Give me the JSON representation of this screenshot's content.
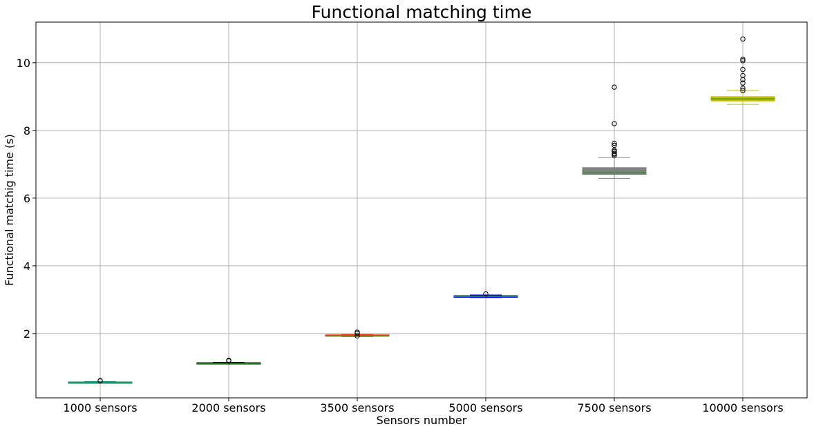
{
  "chart_data": {
    "type": "box",
    "title": "Functional matching time",
    "xlabel": "Sensors number",
    "ylabel": "Functional matchig time (s)",
    "ylim": [
      0.1,
      11.2
    ],
    "yticks": [
      2,
      4,
      6,
      8,
      10
    ],
    "grid": true,
    "categories": [
      "1000 sensors",
      "2000 sensors",
      "3500 sensors",
      "5000 sensors",
      "7500 sensors",
      "10000 sensors"
    ],
    "series": [
      {
        "box_color": "#008080",
        "median_color": "#2ca02c",
        "whisker_low": 0.54,
        "q1": 0.55,
        "median": 0.56,
        "q3": 0.57,
        "whisker_high": 0.58,
        "outliers": [
          0.6,
          0.61
        ]
      },
      {
        "box_color": "#000000",
        "median_color": "#2ca02c",
        "whisker_low": 1.1,
        "q1": 1.11,
        "median": 1.12,
        "q3": 1.14,
        "whisker_high": 1.15,
        "outliers": [
          1.19,
          1.21
        ]
      },
      {
        "box_color": "#e8300c",
        "median_color": "#2ca02c",
        "whisker_low": 1.91,
        "q1": 1.92,
        "median": 1.94,
        "q3": 1.96,
        "whisker_high": 1.97,
        "outliers": [
          1.93,
          2.01,
          2.04
        ]
      },
      {
        "box_color": "#0000ff",
        "median_color": "#2ca02c",
        "whisker_low": 3.06,
        "q1": 3.07,
        "median": 3.1,
        "q3": 3.12,
        "whisker_high": 3.14,
        "outliers": [
          3.17
        ]
      },
      {
        "box_color": "#808080",
        "median_color": "#2ca02c",
        "whisker_low": 6.58,
        "q1": 6.7,
        "median": 6.76,
        "q3": 6.9,
        "whisker_high": 7.2,
        "outliers": [
          7.26,
          7.3,
          7.33,
          7.38,
          7.42,
          7.56,
          7.62,
          8.2,
          9.28
        ]
      },
      {
        "box_color": "#bfbf00",
        "median_color": "#2ca02c",
        "whisker_low": 8.77,
        "q1": 8.87,
        "median": 8.93,
        "q3": 9.0,
        "whisker_high": 9.18,
        "outliers": [
          9.18,
          9.25,
          9.4,
          9.5,
          9.62,
          9.8,
          10.06,
          10.1,
          10.7
        ]
      }
    ]
  }
}
